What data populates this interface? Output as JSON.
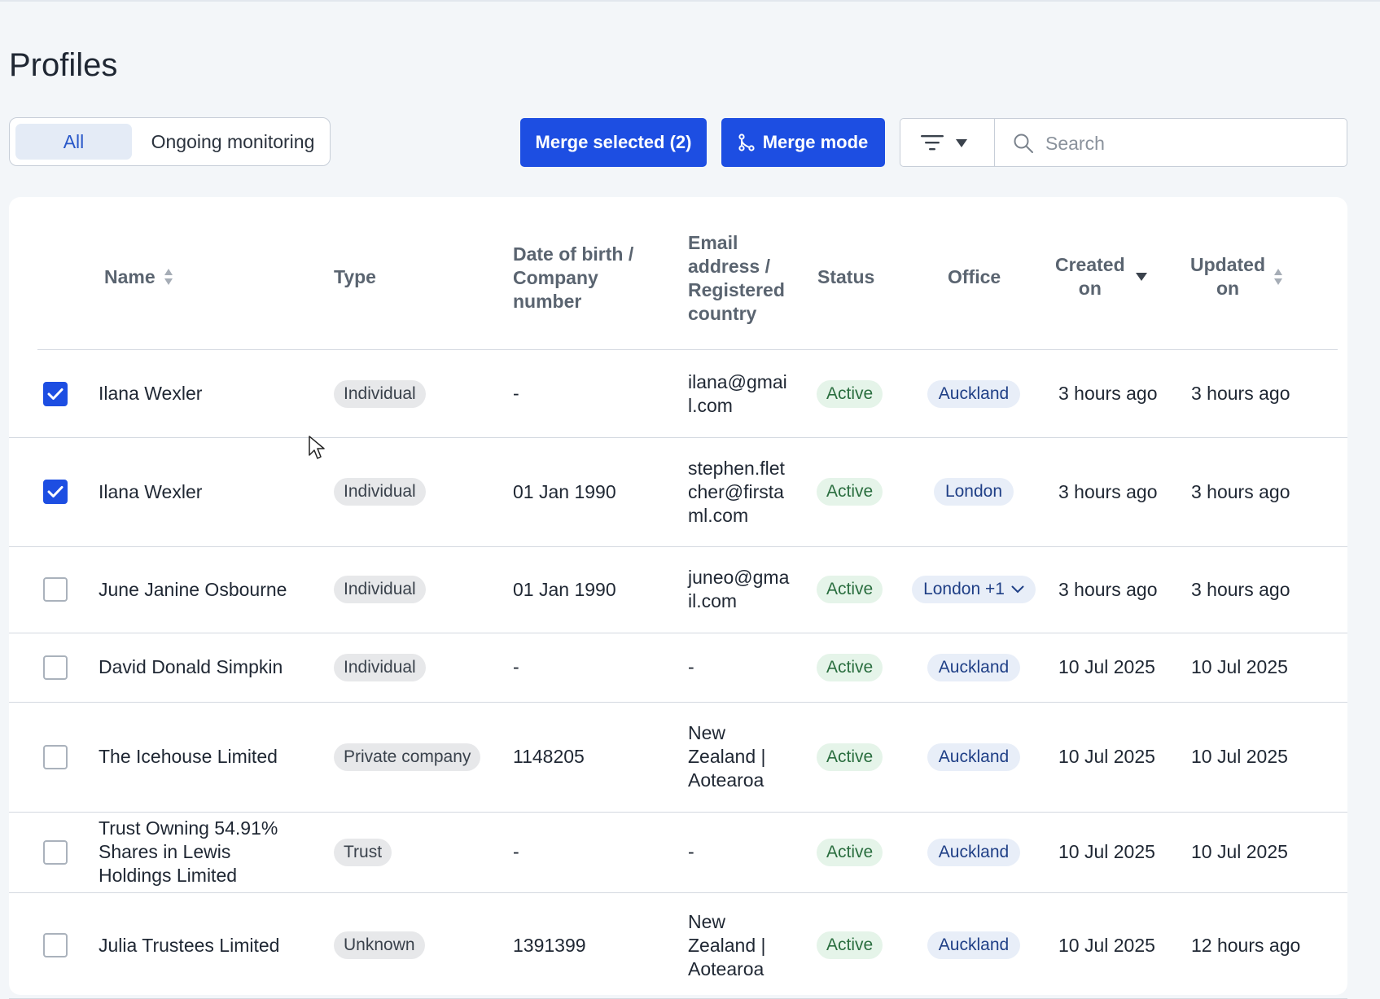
{
  "page": {
    "title": "Profiles"
  },
  "view_toggle": {
    "all_label": "All",
    "ongoing_label": "Ongoing monitoring",
    "selected": "All"
  },
  "toolbar": {
    "merge_selected_label": "Merge selected (2)",
    "merge_mode_label": "Merge mode",
    "search_placeholder": "Search",
    "search_value": ""
  },
  "colors": {
    "primary": "#1d4ee2",
    "status_active_bg": "#e5f4e9",
    "office_bg": "#e8eef8"
  },
  "table": {
    "headers": {
      "name": "Name",
      "type": "Type",
      "dob": [
        "Date of birth /",
        "Company",
        "number"
      ],
      "email": [
        "Email",
        "address /",
        "Registered",
        "country"
      ],
      "status": "Status",
      "office": "Office",
      "created": [
        "Created",
        "on"
      ],
      "updated": [
        "Updated",
        "on"
      ]
    },
    "rows": [
      {
        "checked": true,
        "name": [
          "Ilana Wexler"
        ],
        "type": "Individual",
        "dob": "-",
        "email": [
          "ilana@gmai",
          "l.com"
        ],
        "status": "Active",
        "office": "Auckland",
        "office_dropdown": false,
        "created": "3 hours ago",
        "updated": "3 hours ago"
      },
      {
        "checked": true,
        "name": [
          "Ilana Wexler"
        ],
        "type": "Individual",
        "dob": "01 Jan 1990",
        "email": [
          "stephen.flet",
          "cher@firsta",
          "ml.com"
        ],
        "status": "Active",
        "office": "London",
        "office_dropdown": false,
        "created": "3 hours ago",
        "updated": "3 hours ago"
      },
      {
        "checked": false,
        "name": [
          "June Janine Osbourne"
        ],
        "type": "Individual",
        "dob": "01 Jan 1990",
        "email": [
          "juneo@gma",
          "il.com"
        ],
        "status": "Active",
        "office": "London +1",
        "office_dropdown": true,
        "created": "3 hours ago",
        "updated": "3 hours ago"
      },
      {
        "checked": false,
        "name": [
          "David Donald Simpkin"
        ],
        "type": "Individual",
        "dob": "-",
        "email": [
          "-"
        ],
        "status": "Active",
        "office": "Auckland",
        "office_dropdown": false,
        "created": "10 Jul 2025",
        "updated": "10 Jul 2025"
      },
      {
        "checked": false,
        "name": [
          "The Icehouse Limited"
        ],
        "type": "Private company",
        "dob": "1148205",
        "email": [
          "New",
          "Zealand |",
          "Aotearoa"
        ],
        "status": "Active",
        "office": "Auckland",
        "office_dropdown": false,
        "created": "10 Jul 2025",
        "updated": "10 Jul 2025"
      },
      {
        "checked": false,
        "name": [
          "Trust Owning 54.91%",
          "Shares in Lewis",
          "Holdings Limited"
        ],
        "type": "Trust",
        "dob": "-",
        "email": [
          "-"
        ],
        "status": "Active",
        "office": "Auckland",
        "office_dropdown": false,
        "created": "10 Jul 2025",
        "updated": "10 Jul 2025"
      },
      {
        "checked": false,
        "name": [
          "Julia Trustees Limited"
        ],
        "type": "Unknown",
        "dob": "1391399",
        "email": [
          "New",
          "Zealand |",
          "Aotearoa"
        ],
        "status": "Active",
        "office": "Auckland",
        "office_dropdown": false,
        "created": "10 Jul 2025",
        "updated": "12 hours ago"
      }
    ]
  }
}
